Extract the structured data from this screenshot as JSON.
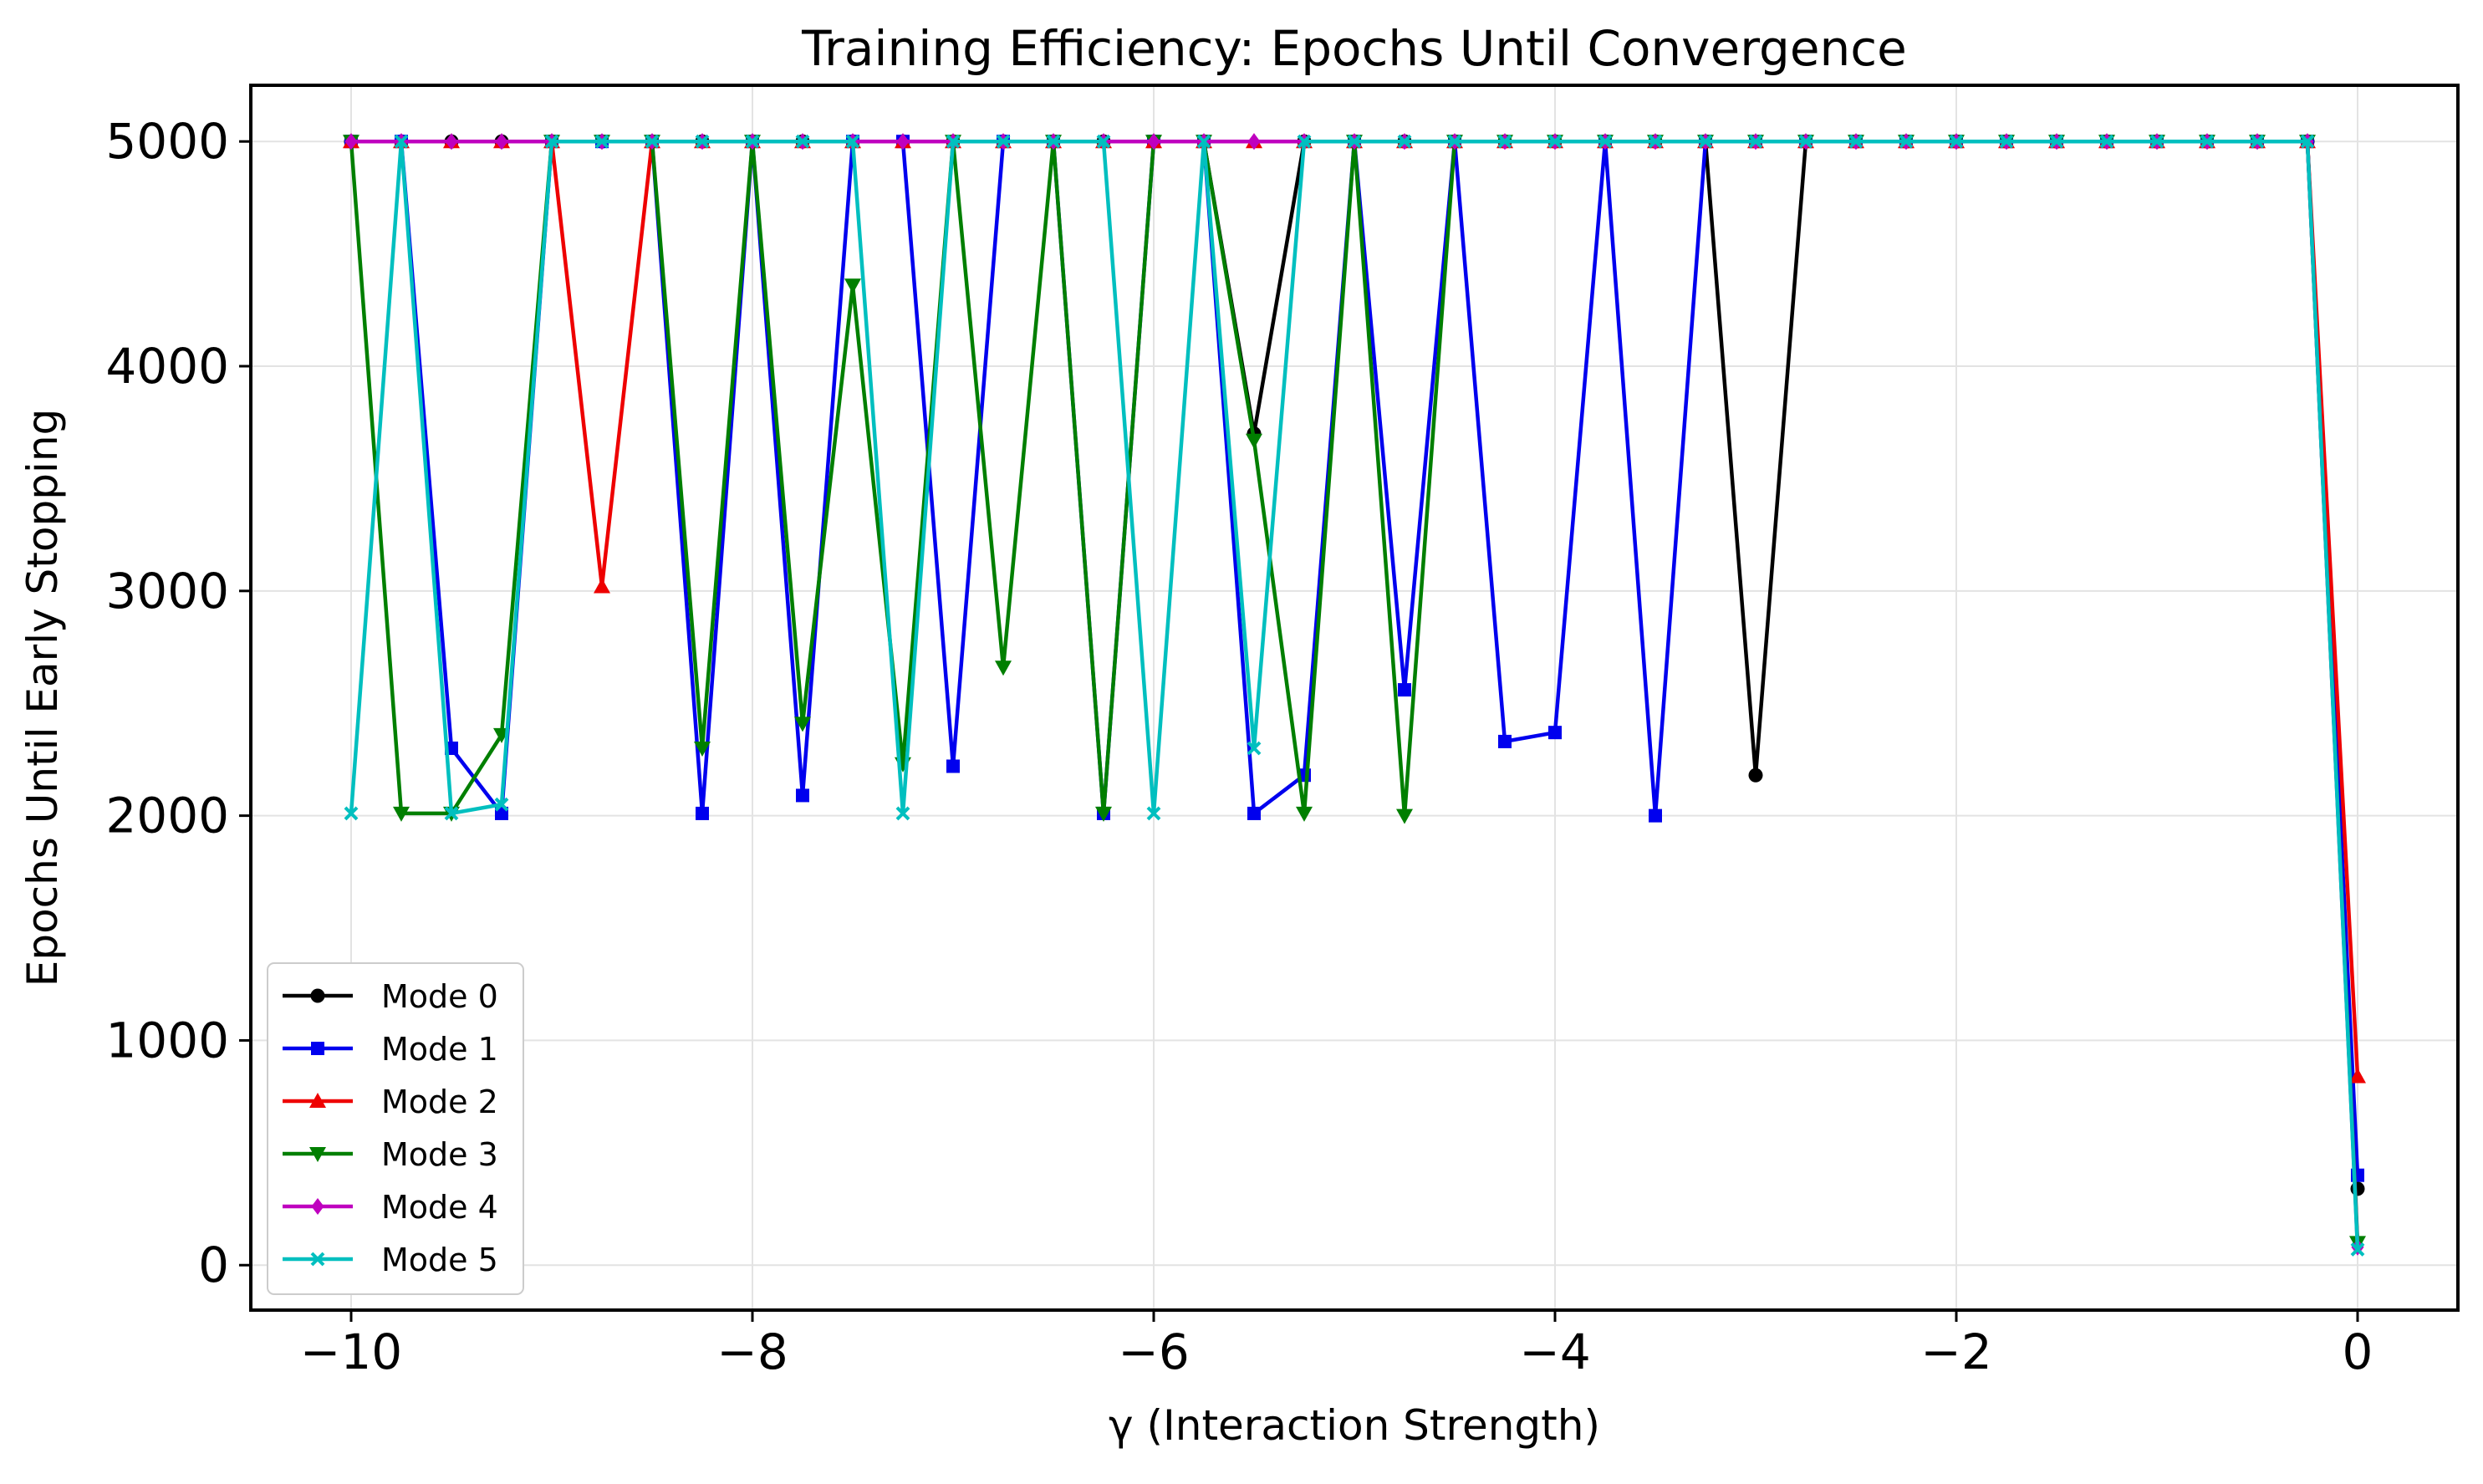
{
  "chart_data": {
    "type": "line",
    "title": "Training Efficiency: Epochs Until Convergence",
    "xlabel": "γ (Interaction Strength)",
    "ylabel": "Epochs Until Early Stopping",
    "xlim": [
      -10.5,
      0.5
    ],
    "ylim": [
      -200,
      5250
    ],
    "xticks": [
      -10,
      -8,
      -6,
      -4,
      -2,
      0
    ],
    "xtick_labels": [
      "−10",
      "−8",
      "−6",
      "−4",
      "−2",
      "0"
    ],
    "yticks": [
      0,
      1000,
      2000,
      3000,
      4000,
      5000
    ],
    "ytick_labels": [
      "0",
      "1000",
      "2000",
      "3000",
      "4000",
      "5000"
    ],
    "grid": true,
    "legend_position": "lower-left",
    "x": [
      -10,
      -9.75,
      -9.5,
      -9.25,
      -9,
      -8.75,
      -8.5,
      -8.25,
      -8,
      -7.75,
      -7.5,
      -7.25,
      -7,
      -6.75,
      -6.5,
      -6.25,
      -6,
      -5.75,
      -5.5,
      -5.25,
      -5,
      -4.75,
      -4.5,
      -4.25,
      -4,
      -3.75,
      -3.5,
      -3.25,
      -3,
      -2.75,
      -2.5,
      -2.25,
      -2,
      -1.75,
      -1.5,
      -1.25,
      -1,
      -0.75,
      -0.5,
      -0.25,
      0
    ],
    "series": [
      {
        "name": "Mode 0",
        "color": "#000000",
        "marker": "circle",
        "values": [
          5000,
          5000,
          5000,
          5000,
          5000,
          5000,
          5000,
          5000,
          5000,
          5000,
          5000,
          5000,
          5000,
          5000,
          5000,
          5000,
          5000,
          5000,
          3700,
          5000,
          5000,
          5000,
          5000,
          5000,
          5000,
          5000,
          5000,
          5000,
          2180,
          5000,
          5000,
          5000,
          5000,
          5000,
          5000,
          5000,
          5000,
          5000,
          5000,
          5000,
          340
        ]
      },
      {
        "name": "Mode 1",
        "color": "#0000ee",
        "marker": "square",
        "values": [
          5000,
          5000,
          2300,
          2010,
          5000,
          5000,
          5000,
          2010,
          5000,
          2090,
          5000,
          5000,
          2220,
          5000,
          5000,
          2010,
          5000,
          5000,
          2010,
          2180,
          5000,
          2560,
          5000,
          2330,
          2370,
          5000,
          2000,
          5000,
          5000,
          5000,
          5000,
          5000,
          5000,
          5000,
          5000,
          5000,
          5000,
          5000,
          5000,
          5000,
          400
        ]
      },
      {
        "name": "Mode 2",
        "color": "#ee0000",
        "marker": "triangle-up",
        "values": [
          5000,
          5000,
          5000,
          5000,
          5000,
          3020,
          5000,
          5000,
          5000,
          5000,
          5000,
          5000,
          5000,
          5000,
          5000,
          5000,
          5000,
          5000,
          5000,
          5000,
          5000,
          5000,
          5000,
          5000,
          5000,
          5000,
          5000,
          5000,
          5000,
          5000,
          5000,
          5000,
          5000,
          5000,
          5000,
          5000,
          5000,
          5000,
          5000,
          5000,
          840
        ]
      },
      {
        "name": "Mode 3",
        "color": "#007f00",
        "marker": "triangle-down",
        "values": [
          5000,
          2010,
          2010,
          2360,
          5000,
          5000,
          5000,
          2300,
          5000,
          2410,
          4360,
          2230,
          5000,
          2660,
          5000,
          2010,
          5000,
          5000,
          3670,
          2010,
          5000,
          2000,
          5000,
          5000,
          5000,
          5000,
          5000,
          5000,
          5000,
          5000,
          5000,
          5000,
          5000,
          5000,
          5000,
          5000,
          5000,
          5000,
          5000,
          5000,
          100
        ]
      },
      {
        "name": "Mode 4",
        "color": "#bf00bf",
        "marker": "diamond",
        "values": [
          5000,
          5000,
          5000,
          5000,
          5000,
          5000,
          5000,
          5000,
          5000,
          5000,
          5000,
          5000,
          5000,
          5000,
          5000,
          5000,
          5000,
          5000,
          5000,
          5000,
          5000,
          5000,
          5000,
          5000,
          5000,
          5000,
          5000,
          5000,
          5000,
          5000,
          5000,
          5000,
          5000,
          5000,
          5000,
          5000,
          5000,
          5000,
          5000,
          5000,
          80
        ]
      },
      {
        "name": "Mode 5",
        "color": "#00bfbf",
        "marker": "x",
        "values": [
          2010,
          5000,
          2010,
          2050,
          5000,
          5000,
          5000,
          5000,
          5000,
          5000,
          5000,
          2010,
          5000,
          5000,
          5000,
          5000,
          2010,
          5000,
          2300,
          5000,
          5000,
          5000,
          5000,
          5000,
          5000,
          5000,
          5000,
          5000,
          5000,
          5000,
          5000,
          5000,
          5000,
          5000,
          5000,
          5000,
          5000,
          5000,
          5000,
          5000,
          70
        ]
      }
    ]
  }
}
